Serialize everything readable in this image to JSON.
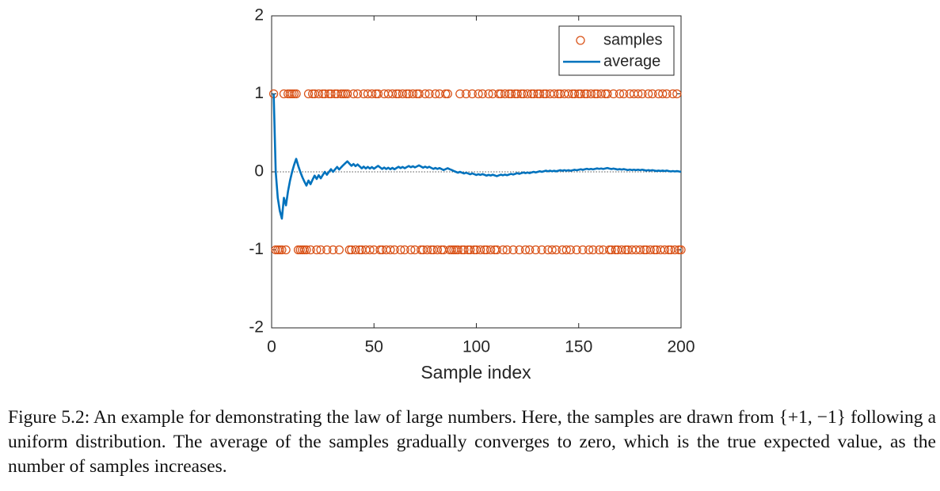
{
  "chart_data": {
    "type": "scatter-line",
    "xlabel": "Sample index",
    "xlim": [
      0,
      200
    ],
    "xticks": [
      0,
      50,
      100,
      150,
      200
    ],
    "ylim": [
      -2,
      2
    ],
    "yticks": [
      -2,
      -1,
      0,
      1,
      2
    ],
    "reference_line": 0,
    "legend": "northeast",
    "x": [
      1,
      2,
      3,
      4,
      5,
      6,
      7,
      8,
      9,
      10,
      11,
      12,
      13,
      14,
      15,
      16,
      17,
      18,
      19,
      20,
      21,
      22,
      23,
      24,
      25,
      26,
      27,
      28,
      29,
      30,
      31,
      32,
      33,
      34,
      35,
      36,
      37,
      38,
      39,
      40,
      41,
      42,
      43,
      44,
      45,
      46,
      47,
      48,
      49,
      50,
      51,
      52,
      53,
      54,
      55,
      56,
      57,
      58,
      59,
      60,
      61,
      62,
      63,
      64,
      65,
      66,
      67,
      68,
      69,
      70,
      71,
      72,
      73,
      74,
      75,
      76,
      77,
      78,
      79,
      80,
      81,
      82,
      83,
      84,
      85,
      86,
      87,
      88,
      89,
      90,
      91,
      92,
      93,
      94,
      95,
      96,
      97,
      98,
      99,
      100,
      101,
      102,
      103,
      104,
      105,
      106,
      107,
      108,
      109,
      110,
      111,
      112,
      113,
      114,
      115,
      116,
      117,
      118,
      119,
      120,
      121,
      122,
      123,
      124,
      125,
      126,
      127,
      128,
      129,
      130,
      131,
      132,
      133,
      134,
      135,
      136,
      137,
      138,
      139,
      140,
      141,
      142,
      143,
      144,
      145,
      146,
      147,
      148,
      149,
      150,
      151,
      152,
      153,
      154,
      155,
      156,
      157,
      158,
      159,
      160,
      161,
      162,
      163,
      164,
      165,
      166,
      167,
      168,
      169,
      170,
      171,
      172,
      173,
      174,
      175,
      176,
      177,
      178,
      179,
      180,
      181,
      182,
      183,
      184,
      185,
      186,
      187,
      188,
      189,
      190,
      191,
      192,
      193,
      194,
      195,
      196,
      197,
      198,
      199,
      200
    ],
    "series": [
      {
        "name": "samples",
        "kind": "markers",
        "color": "#D95319",
        "values": [
          1,
          -1,
          -1,
          -1,
          -1,
          1,
          -1,
          1,
          1,
          1,
          1,
          1,
          -1,
          -1,
          -1,
          -1,
          -1,
          1,
          -1,
          1,
          1,
          -1,
          1,
          -1,
          1,
          1,
          -1,
          1,
          1,
          -1,
          1,
          1,
          -1,
          1,
          1,
          1,
          1,
          -1,
          -1,
          1,
          -1,
          1,
          -1,
          -1,
          1,
          -1,
          1,
          -1,
          1,
          -1,
          1,
          1,
          -1,
          -1,
          1,
          -1,
          1,
          -1,
          1,
          -1,
          1,
          1,
          -1,
          1,
          -1,
          1,
          1,
          -1,
          1,
          -1,
          1,
          1,
          -1,
          -1,
          1,
          -1,
          1,
          -1,
          -1,
          1,
          -1,
          1,
          -1,
          -1,
          1,
          1,
          -1,
          -1,
          -1,
          -1,
          -1,
          1,
          -1,
          -1,
          1,
          -1,
          -1,
          1,
          -1,
          -1,
          1,
          -1,
          1,
          -1,
          -1,
          1,
          -1,
          1,
          -1,
          -1,
          1,
          1,
          -1,
          1,
          -1,
          1,
          1,
          -1,
          1,
          1,
          -1,
          1,
          1,
          -1,
          1,
          -1,
          1,
          1,
          -1,
          1,
          1,
          -1,
          1,
          1,
          -1,
          1,
          -1,
          1,
          -1,
          1,
          1,
          -1,
          1,
          -1,
          1,
          -1,
          1,
          1,
          -1,
          1,
          1,
          -1,
          1,
          1,
          -1,
          1,
          -1,
          1,
          1,
          -1,
          1,
          -1,
          1,
          1,
          -1,
          -1,
          1,
          -1,
          -1,
          1,
          -1,
          1,
          -1,
          -1,
          1,
          -1,
          1,
          -1,
          1,
          -1,
          1,
          -1,
          -1,
          1,
          -1,
          1,
          -1,
          -1,
          1,
          -1,
          1,
          -1,
          1,
          -1,
          -1,
          1,
          -1,
          1,
          -1,
          -1
        ]
      },
      {
        "name": "average",
        "kind": "line",
        "color": "#0072BD",
        "values": [
          1,
          0,
          -0.333,
          -0.5,
          -0.6,
          -0.333,
          -0.429,
          -0.25,
          -0.111,
          0,
          0.091,
          0.167,
          0.077,
          0,
          -0.067,
          -0.125,
          -0.176,
          -0.111,
          -0.158,
          -0.1,
          -0.048,
          -0.091,
          -0.043,
          -0.083,
          -0.04,
          0,
          -0.037,
          0,
          0.034,
          0,
          0.032,
          0.063,
          0.03,
          0.059,
          0.086,
          0.111,
          0.135,
          0.105,
          0.077,
          0.1,
          0.073,
          0.095,
          0.07,
          0.045,
          0.067,
          0.043,
          0.064,
          0.042,
          0.061,
          0.04,
          0.059,
          0.077,
          0.057,
          0.037,
          0.055,
          0.036,
          0.053,
          0.034,
          0.051,
          0.033,
          0.049,
          0.065,
          0.048,
          0.063,
          0.046,
          0.061,
          0.075,
          0.059,
          0.072,
          0.057,
          0.07,
          0.083,
          0.068,
          0.054,
          0.067,
          0.053,
          0.065,
          0.051,
          0.038,
          0.05,
          0.037,
          0.049,
          0.036,
          0.024,
          0.035,
          0.047,
          0.034,
          0.023,
          0.011,
          0,
          -0.011,
          0,
          -0.011,
          -0.021,
          -0.011,
          -0.021,
          -0.031,
          -0.02,
          -0.03,
          -0.04,
          -0.03,
          -0.039,
          -0.029,
          -0.038,
          -0.048,
          -0.038,
          -0.047,
          -0.037,
          -0.046,
          -0.055,
          -0.045,
          -0.036,
          -0.044,
          -0.035,
          -0.043,
          -0.034,
          -0.026,
          -0.034,
          -0.025,
          -0.017,
          -0.025,
          -0.016,
          -0.008,
          -0.016,
          -0.008,
          -0.016,
          -0.008,
          0,
          -0.008,
          0,
          0.008,
          0,
          0.008,
          0.015,
          0.007,
          0.015,
          0.007,
          0.014,
          0.007,
          0.014,
          0.021,
          0.014,
          0.021,
          0.014,
          0.021,
          0.014,
          0.02,
          0.027,
          0.02,
          0.027,
          0.033,
          0.026,
          0.033,
          0.039,
          0.032,
          0.038,
          0.032,
          0.038,
          0.044,
          0.038,
          0.043,
          0.037,
          0.043,
          0.049,
          0.042,
          0.036,
          0.042,
          0.036,
          0.03,
          0.035,
          0.029,
          0.035,
          0.029,
          0.023,
          0.029,
          0.023,
          0.028,
          0.022,
          0.028,
          0.022,
          0.028,
          0.022,
          0.016,
          0.022,
          0.016,
          0.022,
          0.016,
          0.011,
          0.016,
          0.011,
          0.016,
          0.01,
          0.016,
          0.01,
          0.005,
          0.01,
          0.005,
          0.01,
          0.005,
          0
        ]
      }
    ]
  },
  "caption": "Figure 5.2: An example for demonstrating the law of large numbers. Here, the samples are drawn from {+1, −1} following a uniform distribution. The average of the samples gradually converges to zero, which is the true expected value, as the number of samples increases."
}
